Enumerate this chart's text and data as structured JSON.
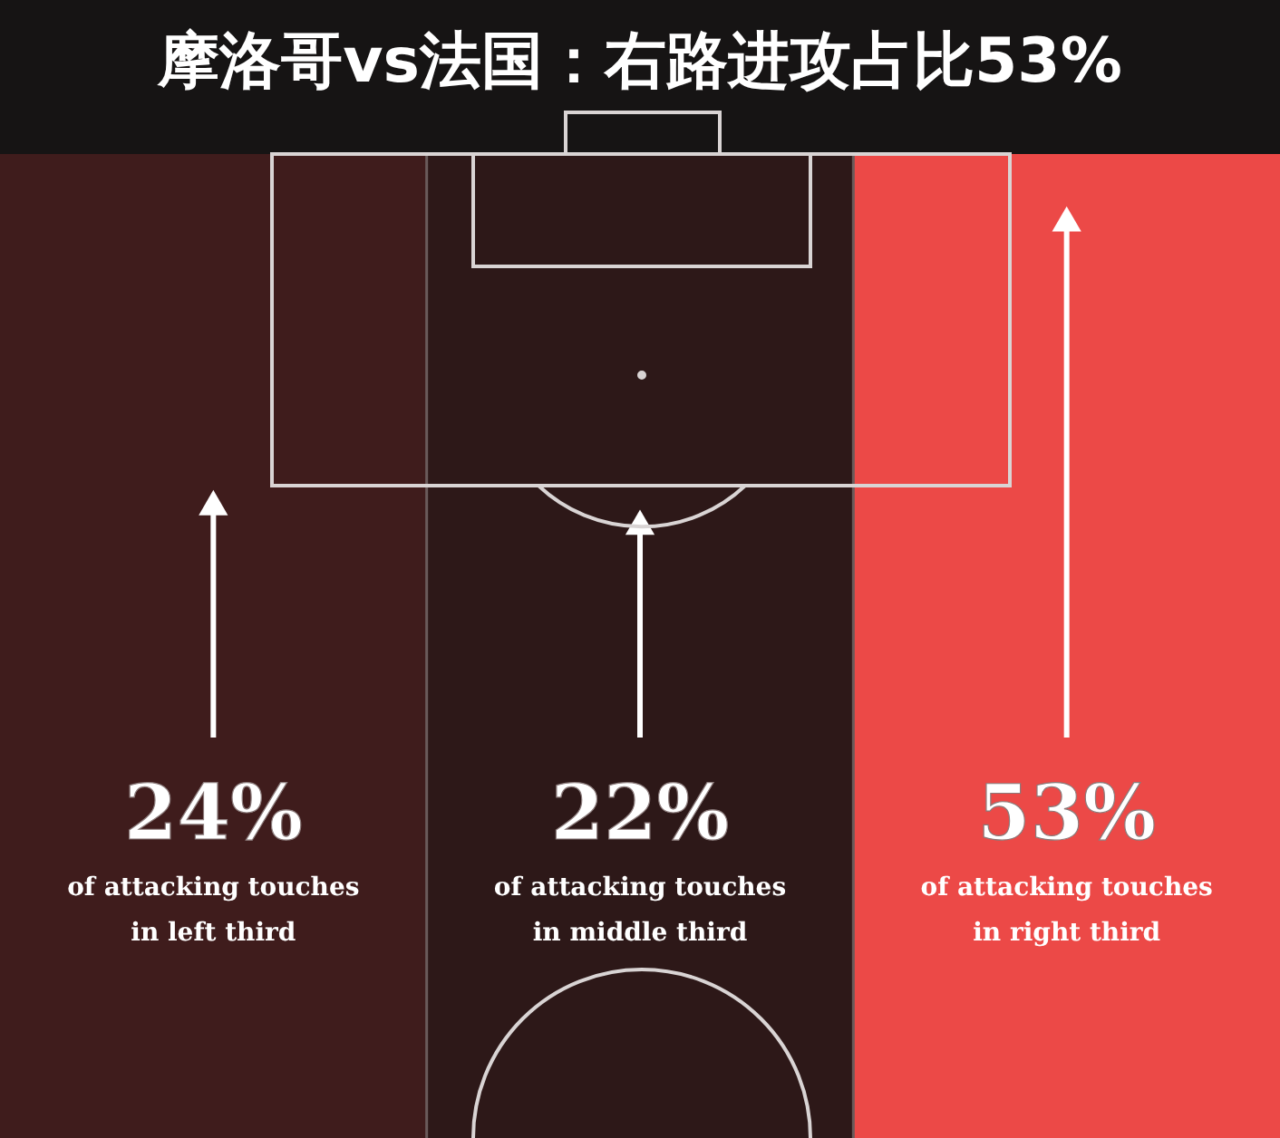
{
  "chart_data": {
    "type": "other",
    "title": "摩洛哥vs法国：右路进攻占比53%",
    "categories": [
      "of attacking touches in left third",
      "of attacking touches in middle third",
      "of attacking touches in right third"
    ],
    "values": [
      24,
      22,
      53
    ],
    "value_labels": [
      "24%",
      "22%",
      "53%"
    ],
    "colors": [
      "#3f1c1c",
      "#2d1818",
      "#ec4947"
    ]
  }
}
